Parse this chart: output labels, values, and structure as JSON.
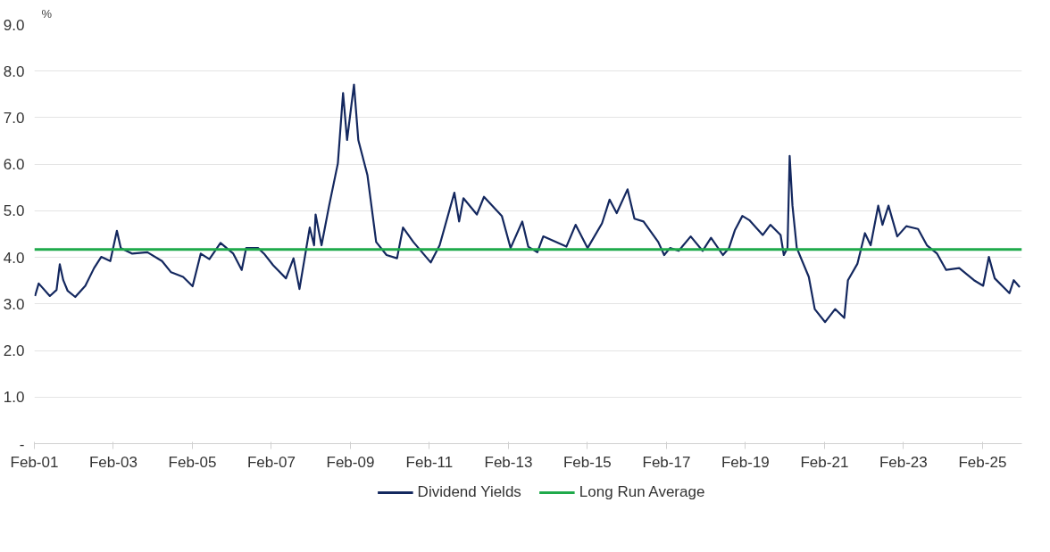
{
  "chart_data": {
    "type": "line",
    "ylabel": "%",
    "x": [
      "2001-02-07",
      "2001-03-13",
      "2001-06-24",
      "2001-08-25",
      "2001-09-24",
      "2001-10-26",
      "2001-12-06",
      "2002-02-14",
      "2002-05-18",
      "2002-08-07",
      "2002-10-12",
      "2003-01-04",
      "2003-03-06",
      "2003-04-11",
      "2003-07-26",
      "2003-12-13",
      "2004-04-26",
      "2004-07-19",
      "2004-11-07",
      "2005-02-03",
      "2005-04-19",
      "2005-07-08",
      "2005-10-19",
      "2006-02-14",
      "2006-05-03",
      "2006-06-13",
      "2006-10-01",
      "2006-11-25",
      "2007-02-18",
      "2007-06-16",
      "2007-08-25",
      "2007-10-19",
      "2008-01-22",
      "2008-03-02",
      "2008-03-16",
      "2008-05-10",
      "2008-07-19",
      "2008-10-08",
      "2008-11-25",
      "2009-01-01",
      "2009-02-07",
      "2009-03-06",
      "2009-04-15",
      "2009-07-08",
      "2009-09-27",
      "2010-01-01",
      "2010-04-08",
      "2010-06-02",
      "2010-09-06",
      "2011-02-14",
      "2011-05-07",
      "2011-09-20",
      "2011-11-03",
      "2011-12-13",
      "2012-04-15",
      "2012-06-20",
      "2012-12-02",
      "2013-02-21",
      "2013-06-09",
      "2013-08-03",
      "2013-10-26",
      "2013-12-20",
      "2014-07-22",
      "2014-10-15",
      "2015-02-03",
      "2015-06-16",
      "2015-08-25",
      "2015-10-30",
      "2016-02-07",
      "2016-04-11",
      "2016-07-04",
      "2016-11-17",
      "2017-01-11",
      "2017-03-06",
      "2017-05-25",
      "2017-09-13",
      "2018-01-01",
      "2018-03-20",
      "2018-07-08",
      "2018-09-02",
      "2018-10-26",
      "2019-01-04",
      "2019-03-09",
      "2019-07-11",
      "2019-09-20",
      "2019-12-23",
      "2020-01-22",
      "2020-02-25",
      "2020-03-16",
      "2020-04-11",
      "2020-05-21",
      "2020-09-09",
      "2020-11-03",
      "2021-02-07",
      "2021-05-10",
      "2021-08-03",
      "2021-09-06",
      "2021-12-02",
      "2022-02-10",
      "2022-04-04",
      "2022-06-13",
      "2022-07-22",
      "2022-09-16",
      "2022-12-06",
      "2023-02-28",
      "2023-06-16",
      "2023-09-06",
      "2023-12-09",
      "2024-03-02",
      "2024-07-01",
      "2024-11-14",
      "2025-02-07",
      "2025-04-01",
      "2025-05-25",
      "2025-10-08",
      "2025-11-17",
      "2026-01-11"
    ],
    "series": [
      {
        "name": "Dividend Yields",
        "color": "#14285f",
        "values": [
          3.17,
          3.44,
          3.17,
          3.3,
          3.85,
          3.51,
          3.28,
          3.15,
          3.39,
          3.77,
          4.01,
          3.92,
          4.57,
          4.2,
          4.08,
          4.11,
          3.92,
          3.68,
          3.58,
          3.38,
          4.08,
          3.96,
          4.31,
          4.08,
          3.73,
          4.2,
          4.2,
          4.08,
          3.83,
          3.55,
          3.98,
          3.32,
          4.64,
          4.26,
          4.92,
          4.26,
          5.11,
          6.02,
          7.53,
          6.52,
          7.21,
          7.71,
          6.52,
          5.77,
          4.33,
          4.05,
          3.98,
          4.64,
          4.33,
          3.89,
          4.26,
          5.39,
          4.77,
          5.27,
          4.92,
          5.3,
          4.89,
          4.2,
          4.77,
          4.23,
          4.11,
          4.45,
          4.23,
          4.7,
          4.2,
          4.73,
          5.24,
          4.95,
          5.46,
          4.83,
          4.77,
          4.33,
          4.05,
          4.2,
          4.14,
          4.45,
          4.14,
          4.42,
          4.05,
          4.2,
          4.58,
          4.89,
          4.8,
          4.48,
          4.7,
          4.48,
          4.05,
          4.2,
          6.18,
          5.11,
          4.2,
          3.58,
          2.89,
          2.61,
          2.89,
          2.7,
          3.51,
          3.86,
          4.52,
          4.26,
          5.11,
          4.7,
          5.11,
          4.45,
          4.67,
          4.61,
          4.26,
          4.08,
          3.73,
          3.77,
          3.51,
          3.39,
          4.01,
          3.55,
          3.23,
          3.51,
          3.36
        ]
      }
    ],
    "ref_lines": [
      {
        "axis": "y",
        "value": 4.17,
        "label": "Long Run Average",
        "color": "#1faa4b"
      }
    ],
    "xlim": [
      "2001-02-01",
      "2026-01-31"
    ],
    "xticks": [
      {
        "value": "2001-02-01",
        "label": "Feb-01"
      },
      {
        "value": "2003-02-01",
        "label": "Feb-03"
      },
      {
        "value": "2005-02-01",
        "label": "Feb-05"
      },
      {
        "value": "2007-02-01",
        "label": "Feb-07"
      },
      {
        "value": "2009-02-01",
        "label": "Feb-09"
      },
      {
        "value": "2011-02-01",
        "label": "Feb-11"
      },
      {
        "value": "2013-02-01",
        "label": "Feb-13"
      },
      {
        "value": "2015-02-01",
        "label": "Feb-15"
      },
      {
        "value": "2017-02-01",
        "label": "Feb-17"
      },
      {
        "value": "2019-02-01",
        "label": "Feb-19"
      },
      {
        "value": "2021-02-01",
        "label": "Feb-21"
      },
      {
        "value": "2023-02-01",
        "label": "Feb-23"
      },
      {
        "value": "2025-02-01",
        "label": "Feb-25"
      }
    ],
    "ylim": [
      0,
      9
    ],
    "yticks": [
      {
        "value": 0,
        "label": "-"
      },
      {
        "value": 1,
        "label": "1.0"
      },
      {
        "value": 2,
        "label": "2.0"
      },
      {
        "value": 3,
        "label": "3.0"
      },
      {
        "value": 4,
        "label": "4.0"
      },
      {
        "value": 5,
        "label": "5.0"
      },
      {
        "value": 6,
        "label": "6.0"
      },
      {
        "value": 7,
        "label": "7.0"
      },
      {
        "value": 8,
        "label": "8.0"
      },
      {
        "value": 9,
        "label": "9.0"
      }
    ],
    "grid": "y",
    "legend": "bottom",
    "line_style": "solid",
    "marker": "none"
  }
}
